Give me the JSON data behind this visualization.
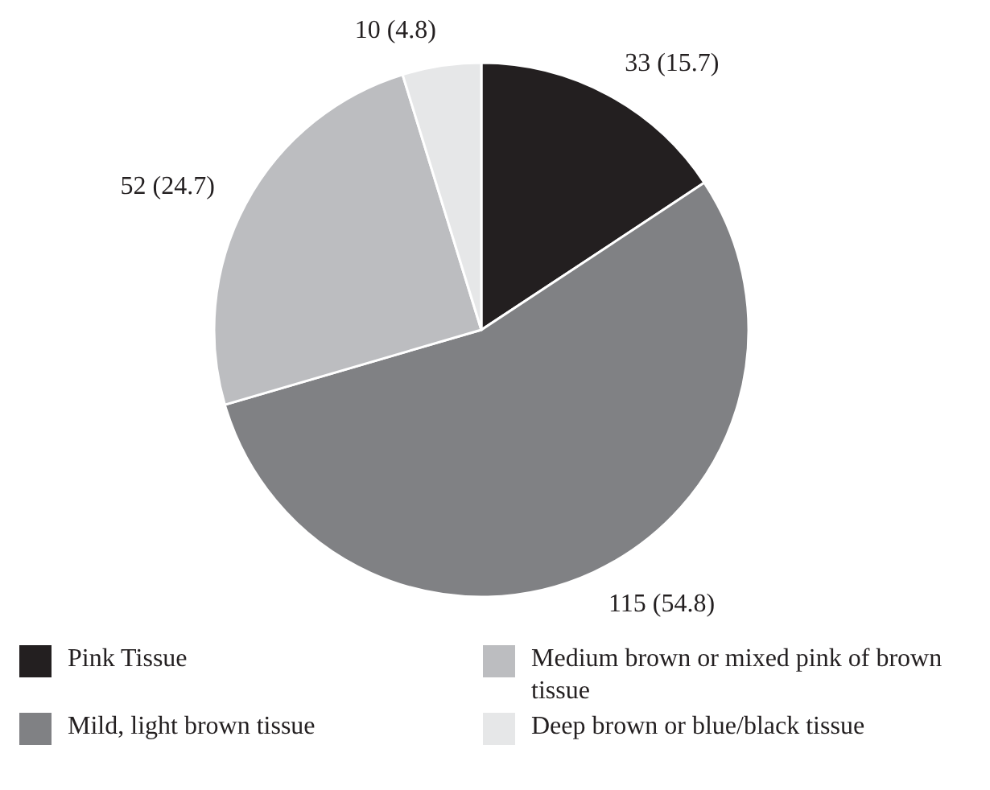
{
  "chart_data": {
    "type": "pie",
    "categories": [
      "Pink Tissue",
      "Mild, light brown tissue",
      "Medium brown or mixed pink of brown tissue",
      "Deep brown or blue/black tissue"
    ],
    "values": [
      33,
      115,
      52,
      10
    ],
    "colors": [
      "#231f20",
      "#808184",
      "#bcbdc0",
      "#e6e7e8"
    ],
    "value_labels": [
      "33 (15.7)",
      "115 (54.8)",
      "52 (24.7)",
      "10 (4.8)"
    ],
    "legend": "bottom"
  }
}
